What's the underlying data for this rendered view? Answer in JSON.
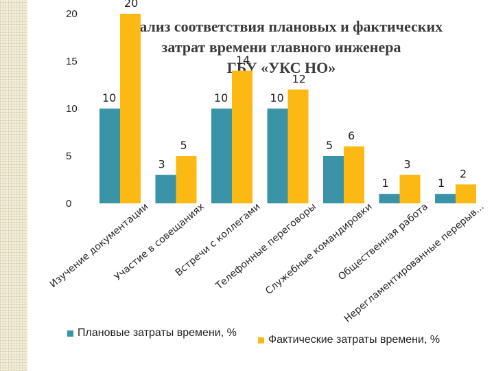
{
  "colors": {
    "planned": "#3a93a6",
    "actual": "#fdb913",
    "text": "#222222"
  },
  "chart_data": {
    "type": "bar",
    "title_lines": [
      "Анализ соответствия плановых и фактических",
      "затрат времени главного инженера",
      "ГБУ «УКС НО»"
    ],
    "categories": [
      "Изучение документации",
      "Участие в совещаниях",
      "Встречи с коллегами",
      "Телефонные переговоры",
      "Служебные командировки",
      "Общественная работа",
      "Нерегламентированные перерыв..."
    ],
    "series": [
      {
        "name": "Плановые затраты времени, %",
        "values": [
          10,
          3,
          10,
          10,
          5,
          1,
          1
        ]
      },
      {
        "name": "Фактические затраты времени, %",
        "values": [
          20,
          5,
          14,
          12,
          6,
          3,
          2
        ]
      }
    ],
    "y_ticks": [
      "0",
      "5",
      "10",
      "15",
      "20",
      "25"
    ],
    "ylim": [
      0,
      25
    ],
    "grid": false,
    "legend_position": "bottom"
  }
}
